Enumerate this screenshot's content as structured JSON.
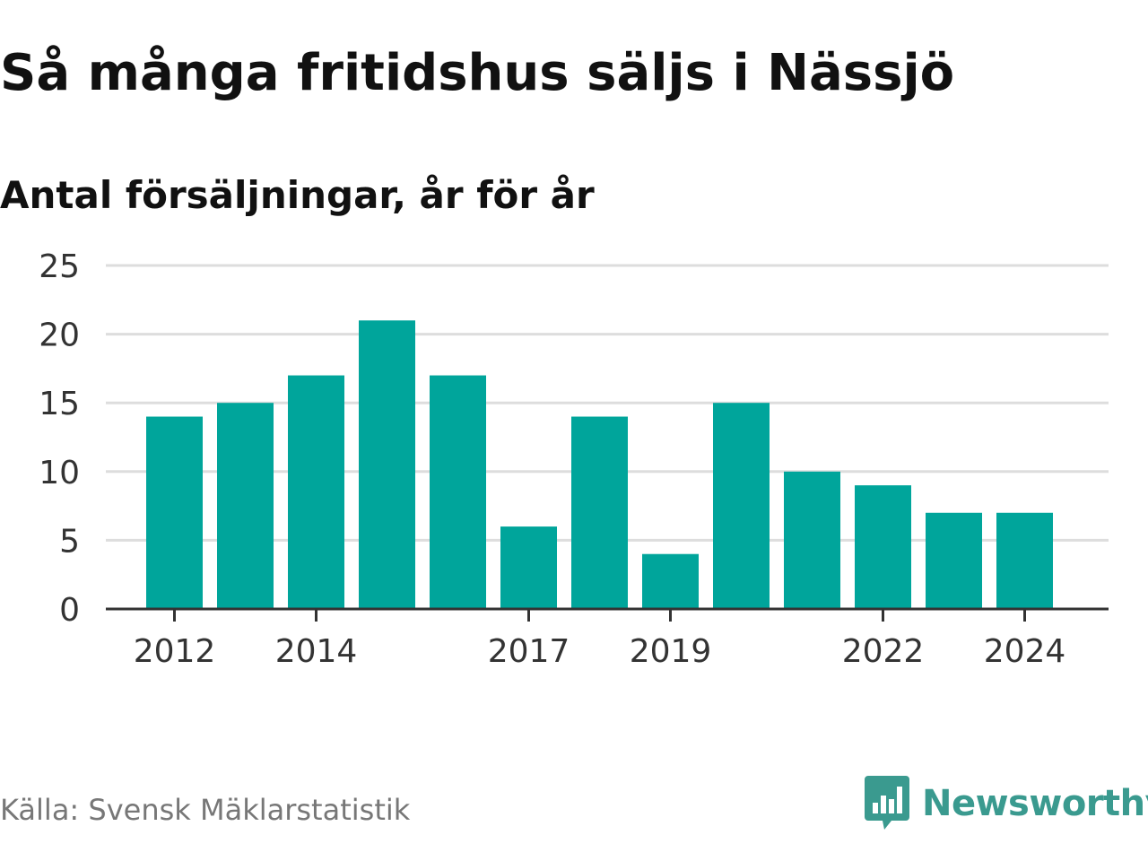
{
  "header": {
    "title": "Så många fritidshus säljs i Nässjö",
    "subtitle": "Antal försäljningar, år för år"
  },
  "footer": {
    "source": "Källa: Svensk Mäklarstatistik",
    "brand": "Newsworthy",
    "brand_icon": "bar-chart-speech-bubble-icon"
  },
  "colors": {
    "bar": "#00a59b",
    "grid": "#dddddd",
    "axis": "#333333",
    "brand": "#3a9a8f"
  },
  "chart_data": {
    "type": "bar",
    "title": "Så många fritidshus säljs i Nässjö",
    "subtitle": "Antal försäljningar, år för år",
    "xlabel": "",
    "ylabel": "",
    "categories": [
      "2012",
      "2013",
      "2014",
      "2015",
      "2016",
      "2017",
      "2018",
      "2019",
      "2020",
      "2021",
      "2022",
      "2023",
      "2024"
    ],
    "values": [
      14,
      15,
      17,
      21,
      17,
      6,
      14,
      4,
      15,
      10,
      9,
      7,
      7
    ],
    "x_tick_labels": [
      "2012",
      "2014",
      "2017",
      "2019",
      "2022",
      "2024"
    ],
    "y_ticks": [
      0,
      5,
      10,
      15,
      20,
      25
    ],
    "ylim": [
      0,
      25
    ],
    "grid": true,
    "legend": "none"
  }
}
